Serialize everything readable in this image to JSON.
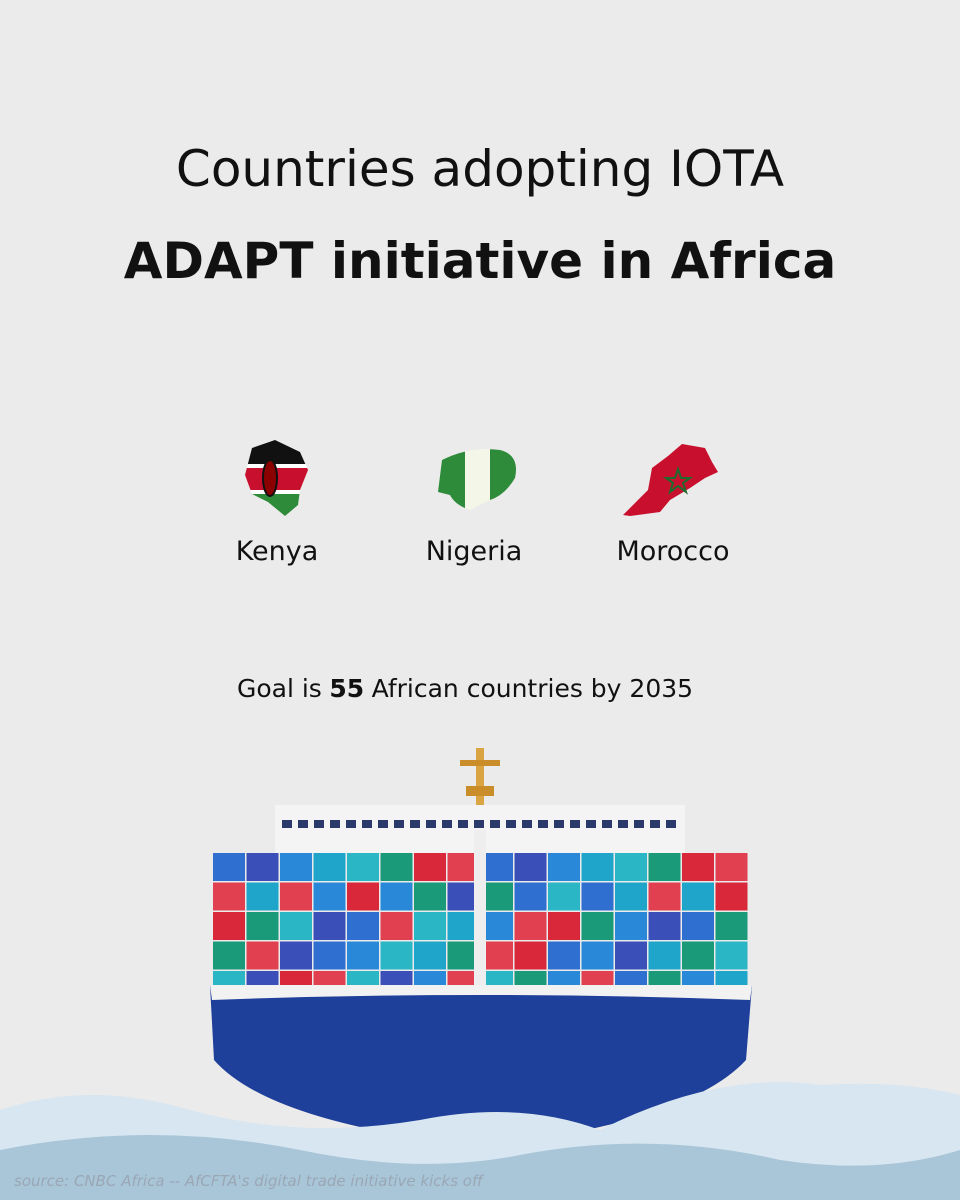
{
  "header": {
    "title_line1": "Countries adopting IOTA",
    "title_line2": "ADAPT initiative in Africa"
  },
  "countries": [
    {
      "name": "Kenya"
    },
    {
      "name": "Nigeria"
    },
    {
      "name": "Morocco"
    }
  ],
  "goal": {
    "prefix": "Goal is",
    "number": "55",
    "suffix": "African countries by 2035"
  },
  "source": "source: CNBC Africa -- AfCFTA's digital trade initiative kicks off"
}
